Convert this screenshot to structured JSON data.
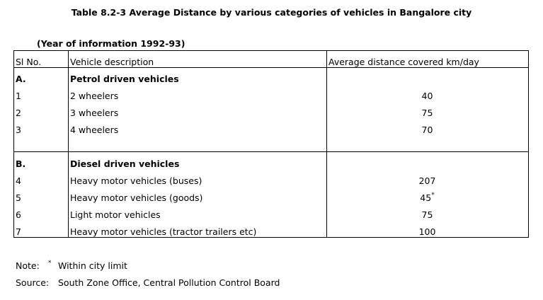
{
  "title": "Table 8.2-3 Average Distance by various categories of vehicles in Bangalore city",
  "subtitle": "(Year of information 1992-93)",
  "table": {
    "headers": [
      "Sl No.",
      "Vehicle description",
      "Average distance covered km/day"
    ],
    "sections": [
      {
        "id": "A.",
        "label": "Petrol driven vehicles",
        "rows": [
          {
            "no": 1,
            "description": "2 wheelers",
            "value": 40
          },
          {
            "no": 2,
            "description": "3 wheelers",
            "value": 75
          },
          {
            "no": 3,
            "description": "4 wheelers",
            "value": 70
          }
        ]
      },
      {
        "id": "B.",
        "label": "Diesel driven vehicles",
        "rows": [
          {
            "no": 4,
            "description": "Heavy motor vehicles (buses)",
            "value": 207
          },
          {
            "no": 5,
            "description": "Heavy motor vehicles (goods)",
            "value": 45,
            "mark": "*"
          },
          {
            "no": 6,
            "description": "Light motor vehicles",
            "value": 75
          },
          {
            "no": 7,
            "description": "Heavy motor vehicles (tractor trailers etc)",
            "value": 100
          }
        ]
      }
    ]
  },
  "note": {
    "label": "Note:",
    "mark": "*",
    "text": "Within city limit"
  },
  "source": {
    "label": "Source:",
    "text": "South Zone Office, Central Pollution Control Board"
  }
}
